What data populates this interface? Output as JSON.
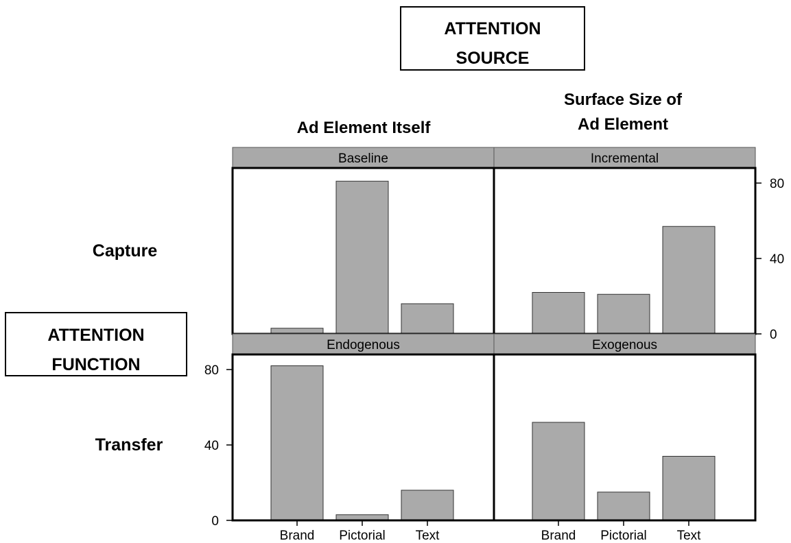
{
  "source_box": {
    "line1": "ATTENTION",
    "line2": "SOURCE"
  },
  "function_box": {
    "line1": "ATTENTION",
    "line2": "FUNCTION"
  },
  "col_headers": [
    {
      "line1": "",
      "line2": "Ad Element Itself"
    },
    {
      "line1": "Surface Size of",
      "line2": "Ad Element"
    }
  ],
  "row_headers": [
    "Capture",
    "Transfer"
  ],
  "chart_data": {
    "type": "bar",
    "categories": [
      "Brand",
      "Pictorial",
      "Text"
    ],
    "ylim": [
      0,
      88
    ],
    "yticks": [
      0,
      40,
      80
    ],
    "grid": false,
    "panels": [
      {
        "strip": "Baseline",
        "row": 0,
        "col": 0,
        "values": [
          3,
          81,
          16
        ]
      },
      {
        "strip": "Incremental",
        "row": 0,
        "col": 1,
        "values": [
          22,
          21,
          57
        ]
      },
      {
        "strip": "Endogenous",
        "row": 1,
        "col": 0,
        "values": [
          82,
          3,
          16
        ]
      },
      {
        "strip": "Exogenous",
        "row": 1,
        "col": 1,
        "values": [
          52,
          15,
          34
        ]
      }
    ],
    "bar_color": "#aaaaaa",
    "strip_color": "#a9a9a9"
  }
}
